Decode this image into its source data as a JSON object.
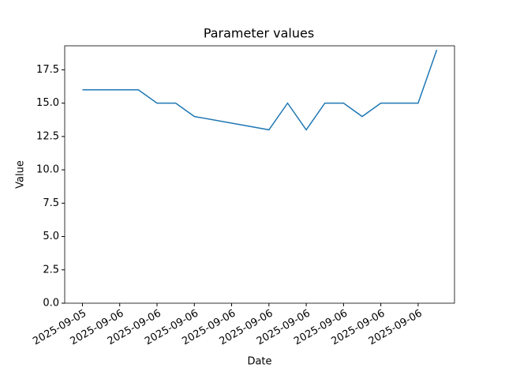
{
  "chart_data": {
    "type": "line",
    "title": "Parameter values",
    "xlabel": "Date",
    "ylabel": "Value",
    "x": [
      0,
      1.5,
      2,
      2.5,
      3,
      5,
      5.5,
      6,
      6.5,
      7,
      7.5,
      8,
      9,
      9.5
    ],
    "series": [
      {
        "name": "Value",
        "color": "#1f77b4",
        "values": [
          16,
          16,
          15,
          15,
          14,
          13,
          15,
          13,
          15,
          15,
          14,
          15,
          15,
          19
        ]
      }
    ],
    "xlim": [
      -0.475,
      9.975
    ],
    "xticks": [
      {
        "value": 0,
        "label": "2025-09-05"
      },
      {
        "value": 1,
        "label": "2025-09-06"
      },
      {
        "value": 2,
        "label": "2025-09-06"
      },
      {
        "value": 3,
        "label": "2025-09-06"
      },
      {
        "value": 4,
        "label": "2025-09-06"
      },
      {
        "value": 5,
        "label": "2025-09-06"
      },
      {
        "value": 6,
        "label": "2025-09-06"
      },
      {
        "value": 7,
        "label": "2025-09-06"
      },
      {
        "value": 8,
        "label": "2025-09-06"
      },
      {
        "value": 9,
        "label": "2025-09-06"
      }
    ],
    "ylim": [
      0,
      19.3
    ],
    "yticks": [
      {
        "value": 0,
        "label": "0.0"
      },
      {
        "value": 2.5,
        "label": "2.5"
      },
      {
        "value": 5,
        "label": "5.0"
      },
      {
        "value": 7.5,
        "label": "7.5"
      },
      {
        "value": 10,
        "label": "10.0"
      },
      {
        "value": 12.5,
        "label": "12.5"
      },
      {
        "value": 15,
        "label": "15.0"
      },
      {
        "value": 17.5,
        "label": "17.5"
      }
    ],
    "grid": false
  }
}
